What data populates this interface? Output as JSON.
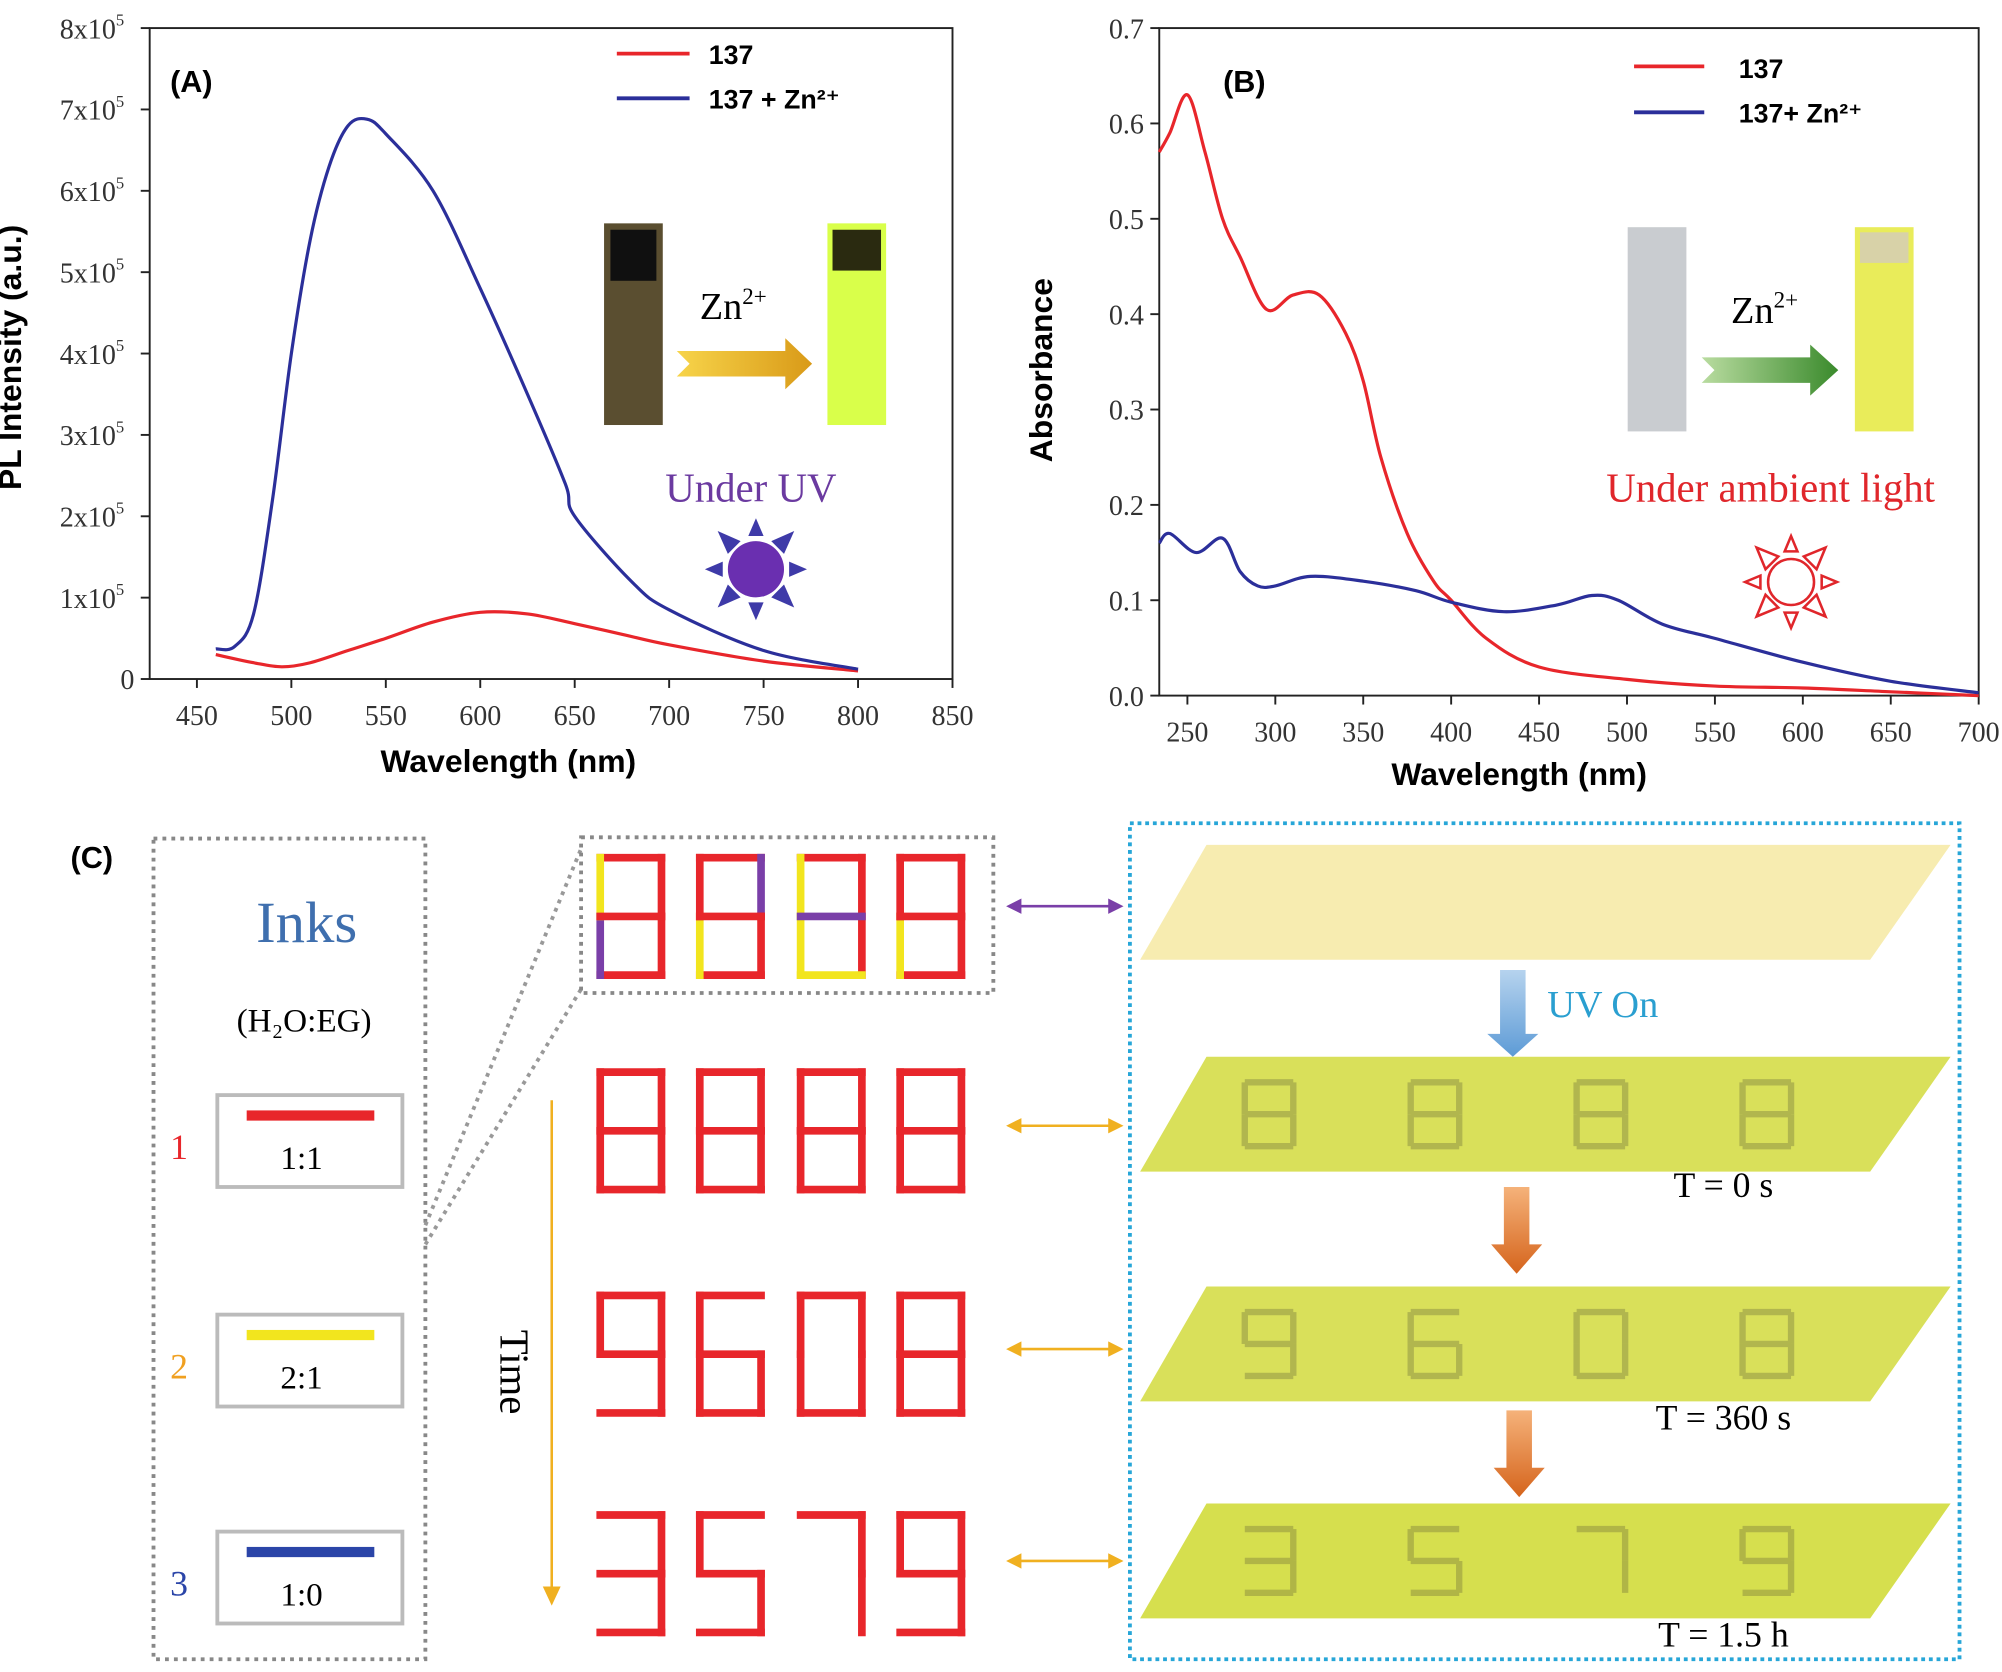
{
  "colors": {
    "red": "#e8262b",
    "blue": "#2b2f9a",
    "yellow": "#f2e51e",
    "purple": "#7a3fa8",
    "cyan": "#27a6d8",
    "orange": "#f0b020"
  },
  "chart_data": [
    {
      "type": "line",
      "panel_label": "(A)",
      "xlabel": "Wavelength (nm)",
      "ylabel": "PL Intensity (a.u.)",
      "xlim": [
        425,
        850
      ],
      "ylim": [
        0,
        800000
      ],
      "xticks": [
        450,
        500,
        550,
        600,
        650,
        700,
        750,
        800,
        850
      ],
      "yticks": [
        0,
        100000,
        200000,
        300000,
        400000,
        500000,
        600000,
        700000,
        800000
      ],
      "ytick_labels": [
        {
          "base": "0",
          "exp": ""
        },
        {
          "base": "1x10",
          "exp": "5"
        },
        {
          "base": "2x10",
          "exp": "5"
        },
        {
          "base": "3x10",
          "exp": "5"
        },
        {
          "base": "4x10",
          "exp": "5"
        },
        {
          "base": "5x10",
          "exp": "5"
        },
        {
          "base": "6x10",
          "exp": "5"
        },
        {
          "base": "7x10",
          "exp": "5"
        },
        {
          "base": "8x10",
          "exp": "5"
        }
      ],
      "grid": false,
      "legend_position": "top-right",
      "series": [
        {
          "name": "137",
          "color": "#e8262b",
          "x": [
            460,
            480,
            495,
            510,
            530,
            550,
            575,
            600,
            625,
            650,
            675,
            700,
            750,
            800
          ],
          "y": [
            30000,
            20000,
            15000,
            20000,
            35000,
            50000,
            70000,
            82000,
            80000,
            68000,
            55000,
            42000,
            22000,
            10000
          ]
        },
        {
          "name": "137 + Zn²⁺",
          "color": "#2b2f9a",
          "x": [
            460,
            470,
            480,
            490,
            500,
            510,
            520,
            530,
            540,
            550,
            575,
            600,
            625,
            645,
            650,
            680,
            700,
            750,
            800
          ],
          "y": [
            37000,
            40000,
            80000,
            220000,
            400000,
            540000,
            630000,
            680000,
            688000,
            670000,
            600000,
            480000,
            350000,
            240000,
            200000,
            120000,
            85000,
            35000,
            12000
          ]
        }
      ],
      "inset": {
        "arrow_label": "Zn",
        "arrow_label_sup": "2+",
        "condition": "Under UV"
      }
    },
    {
      "type": "line",
      "panel_label": "(B)",
      "xlabel": "Wavelength (nm)",
      "ylabel": "Absorbance",
      "xlim": [
        234,
        700
      ],
      "ylim": [
        0,
        0.7
      ],
      "xticks": [
        250,
        300,
        350,
        400,
        450,
        500,
        550,
        600,
        650,
        700
      ],
      "yticks": [
        0.0,
        0.1,
        0.2,
        0.3,
        0.4,
        0.5,
        0.6,
        0.7
      ],
      "ytick_labels": [
        "0.0",
        "0.1",
        "0.2",
        "0.3",
        "0.4",
        "0.5",
        "0.6",
        "0.7"
      ],
      "grid": false,
      "legend_position": "top-right",
      "series": [
        {
          "name": "137",
          "color": "#e8262b",
          "x": [
            234,
            240,
            250,
            260,
            270,
            280,
            295,
            310,
            325,
            340,
            350,
            360,
            375,
            390,
            400,
            420,
            450,
            500,
            550,
            600,
            650,
            700
          ],
          "y": [
            0.57,
            0.59,
            0.63,
            0.57,
            0.5,
            0.46,
            0.405,
            0.42,
            0.42,
            0.38,
            0.33,
            0.25,
            0.17,
            0.12,
            0.1,
            0.06,
            0.03,
            0.017,
            0.01,
            0.008,
            0.004,
            0.0
          ]
        },
        {
          "name": "137+ Zn²⁺",
          "color": "#2b2f9a",
          "x": [
            234,
            240,
            255,
            270,
            280,
            290,
            300,
            320,
            350,
            380,
            400,
            430,
            460,
            480,
            495,
            520,
            550,
            600,
            650,
            700
          ],
          "y": [
            0.16,
            0.17,
            0.15,
            0.165,
            0.13,
            0.115,
            0.115,
            0.125,
            0.12,
            0.11,
            0.098,
            0.088,
            0.095,
            0.105,
            0.1,
            0.075,
            0.06,
            0.035,
            0.015,
            0.003
          ]
        }
      ],
      "inset": {
        "arrow_label": "Zn",
        "arrow_label_sup": "2+",
        "condition": "Under ambient light"
      }
    }
  ],
  "panel_c": {
    "label": "(C)",
    "inks_title": "Inks",
    "solvent_label": "(H₂O:EG)",
    "inks": [
      {
        "number": "1",
        "ratio": "1:1",
        "color": "#e8262b"
      },
      {
        "number": "2",
        "ratio": "2:1",
        "color": "#f2e51e"
      },
      {
        "number": "3",
        "ratio": "1:0",
        "color": "#2b45a8"
      }
    ],
    "time_label": "Time",
    "uv_label": "UV On",
    "digit_rows": [
      "8888",
      "8888",
      "9608",
      "3579"
    ],
    "time_labels": [
      "T = 0 s",
      "T = 360 s",
      "T = 1.5 h"
    ]
  }
}
